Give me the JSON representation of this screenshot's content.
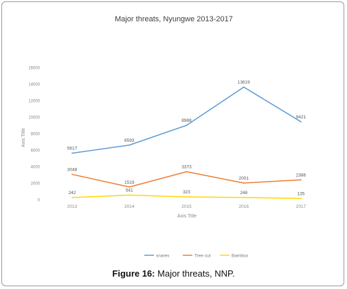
{
  "caption": {
    "label": "Figure 16:",
    "text": "Major threats, NNP."
  },
  "chart_data": {
    "type": "line",
    "title": "Major threats, Nyungwe 2013-2017",
    "xlabel": "Axis Title",
    "ylabel": "Axis Title",
    "categories": [
      "2013",
      "2014",
      "2015",
      "2016",
      "2017"
    ],
    "ylim": [
      0,
      16000
    ],
    "yticks": [
      0,
      2000,
      4000,
      6000,
      8000,
      10000,
      12000,
      14000,
      16000
    ],
    "ytick_labels": [
      "0",
      "2000",
      "4000",
      "6000",
      "8000",
      "10000",
      "12000",
      "14000",
      "16000"
    ],
    "grid": false,
    "legend_position": "bottom",
    "series": [
      {
        "name": "snares",
        "color": "#5b9bd5",
        "values": [
          5617,
          6593,
          8988,
          13619,
          9421
        ]
      },
      {
        "name": "Tree cut",
        "color": "#ed7d31",
        "values": [
          3048,
          1519,
          3373,
          2001,
          2386
        ]
      },
      {
        "name": "Bamboo",
        "color": "#ffd700",
        "values": [
          242,
          541,
          323,
          248,
          135
        ]
      }
    ]
  }
}
